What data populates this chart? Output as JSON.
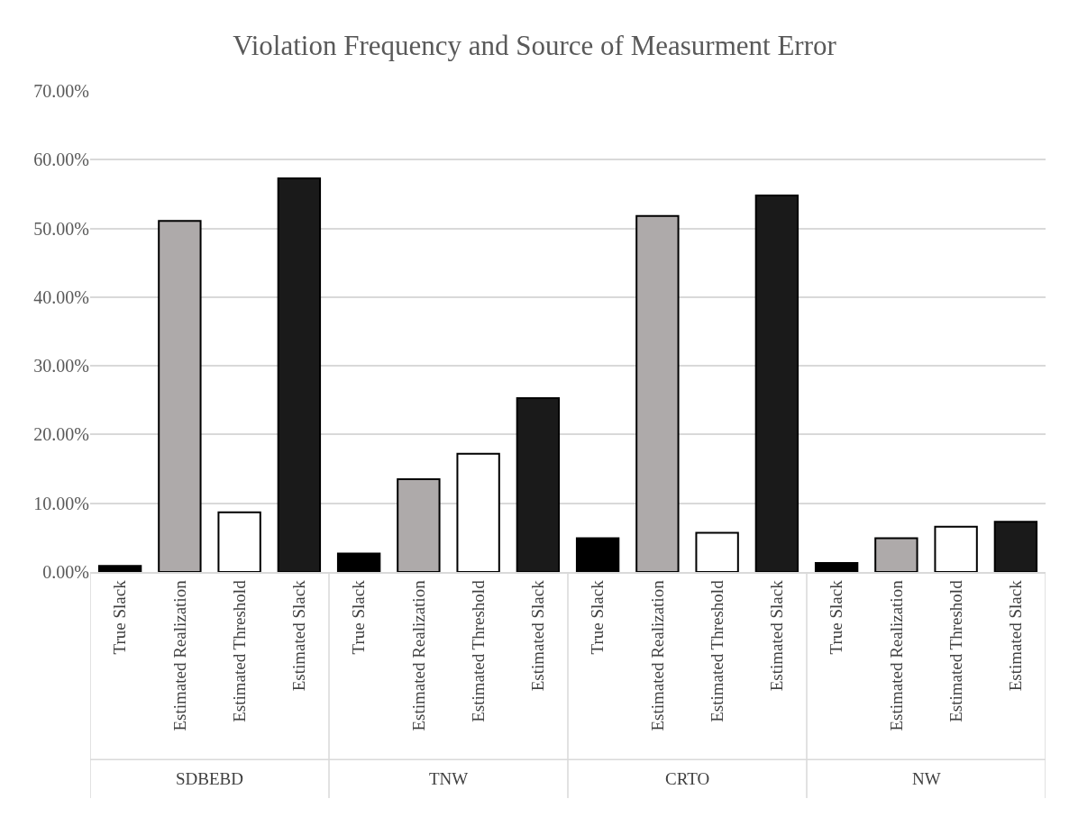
{
  "chart_data": {
    "type": "bar",
    "title": "Violation Frequency and Source of Measurment Error",
    "categories": [
      "True Slack",
      "Estimated Realization",
      "Estimated Threshold",
      "Estimated Slack",
      "True Slack",
      "Estimated Realization",
      "Estimated Threshold",
      "Estimated Slack",
      "True Slack",
      "Estimated Realization",
      "Estimated Threshold",
      "Estimated Slack",
      "True Slack",
      "Estimated Realization",
      "Estimated Threshold",
      "Estimated Slack"
    ],
    "values": [
      0.9,
      51.1,
      8.7,
      57.3,
      2.7,
      13.5,
      17.2,
      25.3,
      4.9,
      51.8,
      5.7,
      54.8,
      1.3,
      4.9,
      6.6,
      7.3
    ],
    "colors": [
      "#000000",
      "#aeaaaa",
      "#ffffff",
      "#1a1a1a",
      "#000000",
      "#aeaaaa",
      "#ffffff",
      "#1a1a1a",
      "#000000",
      "#aeaaaa",
      "#ffffff",
      "#1a1a1a",
      "#000000",
      "#aeaaaa",
      "#ffffff",
      "#1a1a1a"
    ],
    "annotations": [
      "SDBEBD",
      "TNW",
      "CRTO",
      "NW"
    ],
    "ylim": [
      0,
      70
    ],
    "yticks": [
      {
        "value": 0,
        "label": "0.00%"
      },
      {
        "value": 10,
        "label": "10.00%"
      },
      {
        "value": 20,
        "label": "20.00%"
      },
      {
        "value": 30,
        "label": "30.00%"
      },
      {
        "value": 40,
        "label": "40.00%"
      },
      {
        "value": 50,
        "label": "50.00%"
      },
      {
        "value": 60,
        "label": "60.00%"
      },
      {
        "value": 70,
        "label": "70.00%"
      }
    ],
    "grid": "y"
  }
}
